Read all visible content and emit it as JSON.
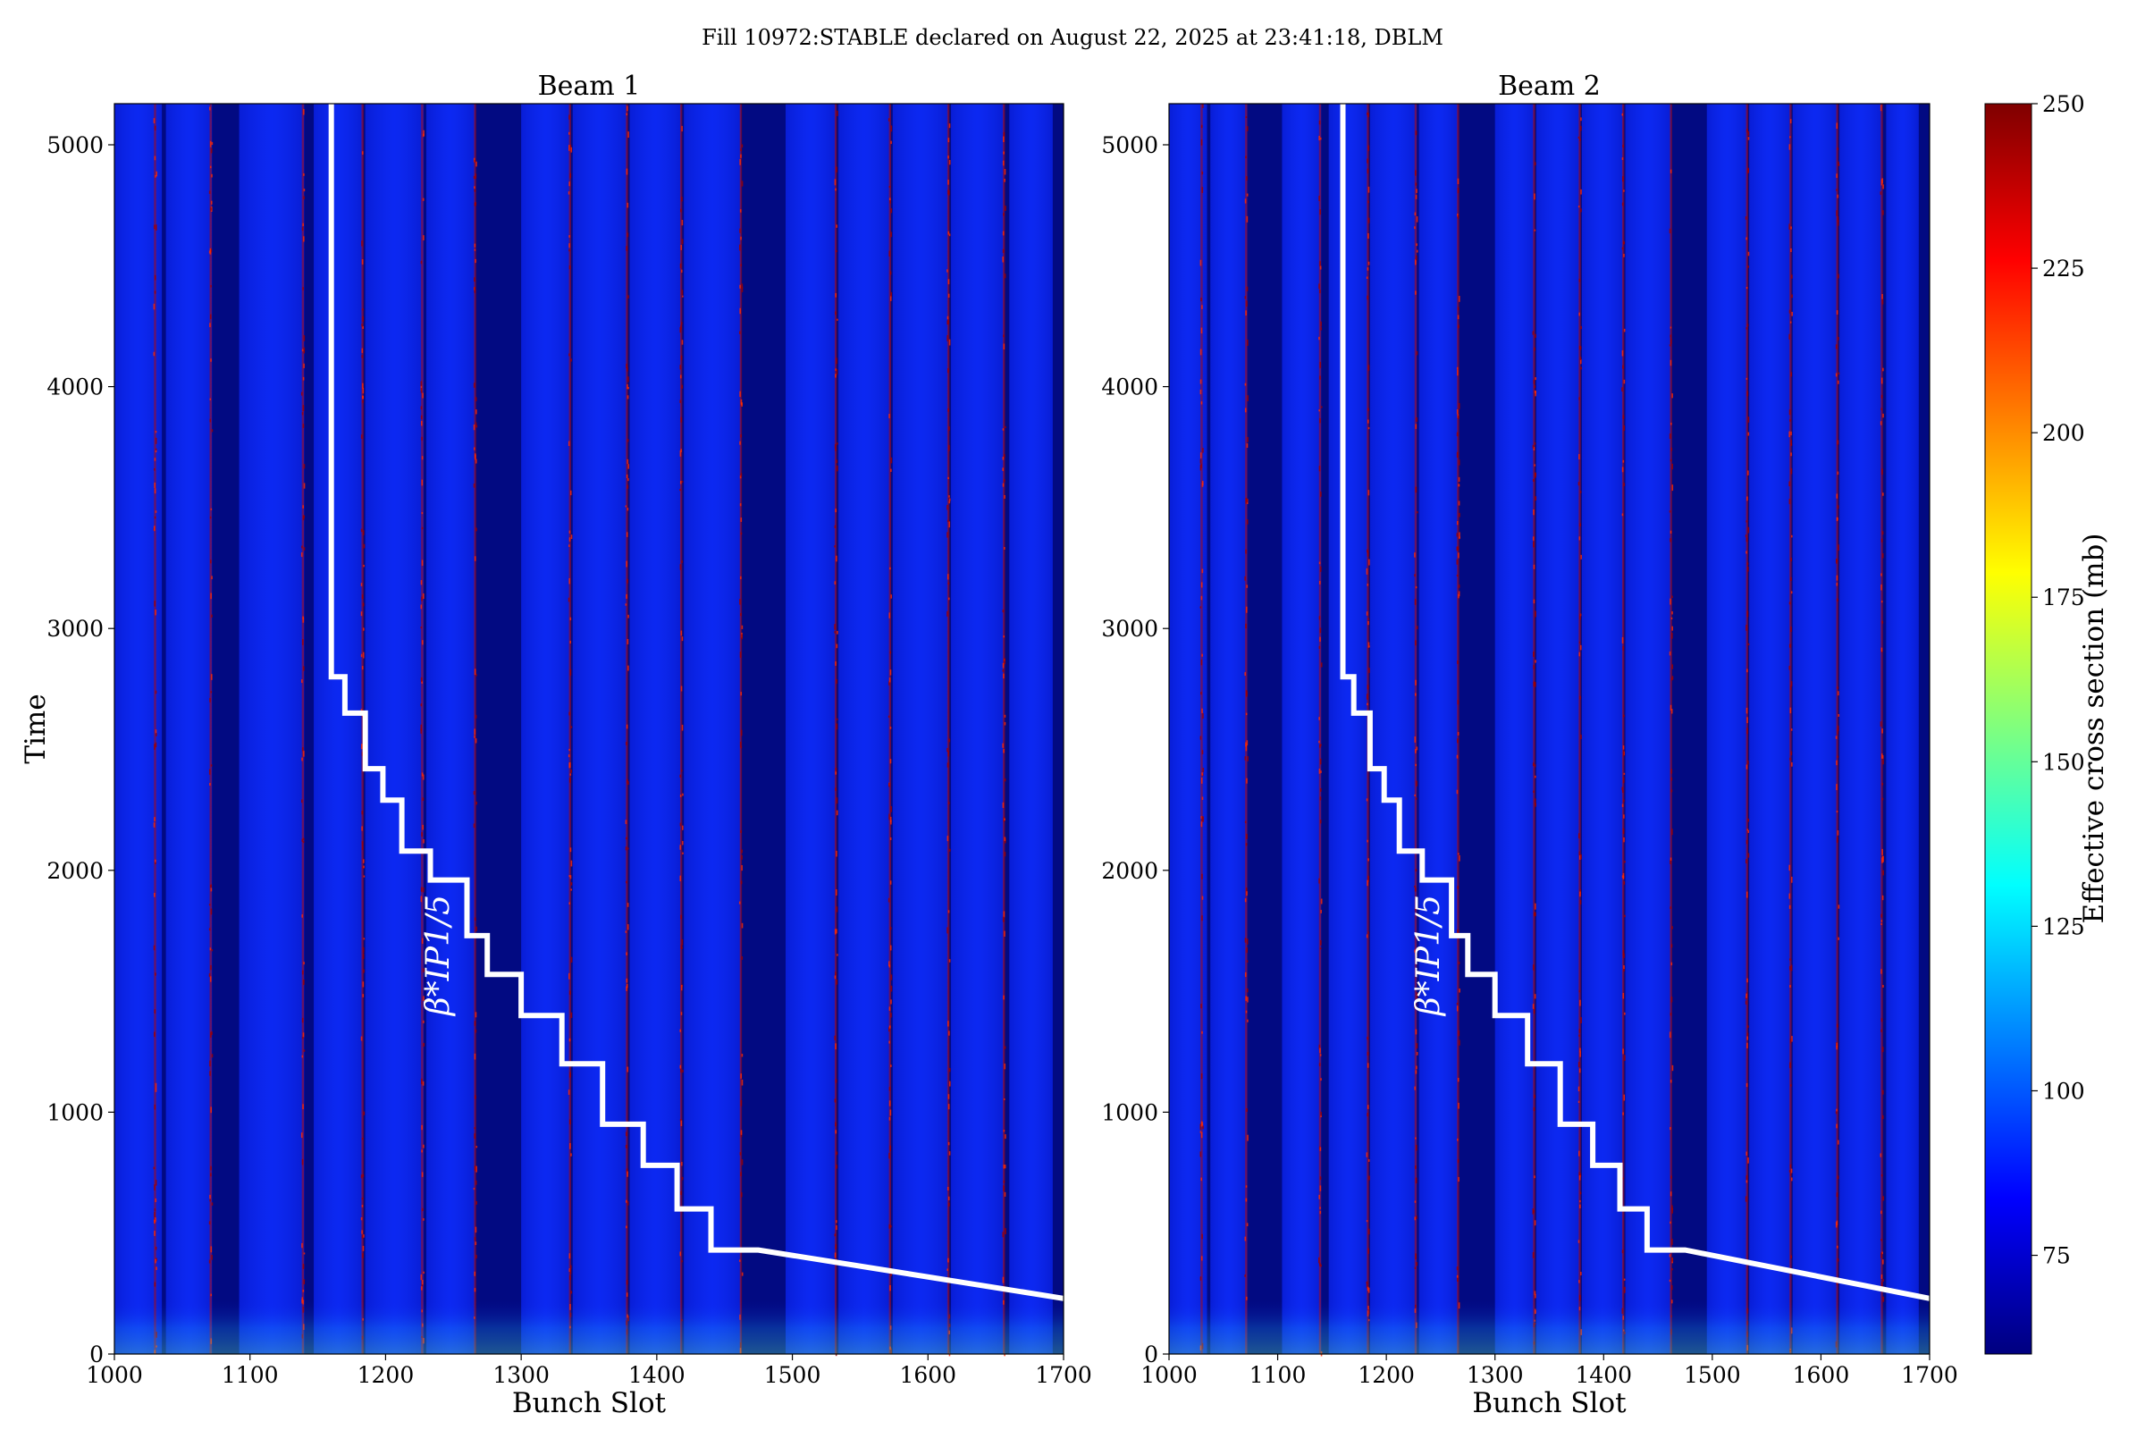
{
  "figure": {
    "suptitle": "Fill 10972:STABLE declared on August 22, 2025 at 23:41:18, DBLM"
  },
  "colorbar": {
    "label": "Effective cross section (mb)",
    "min": 60,
    "max": 250,
    "ticks": [
      "75",
      "100",
      "125",
      "150",
      "175",
      "200",
      "225",
      "250"
    ],
    "colormap": [
      "#00007f",
      "#0000ff",
      "#00ffff",
      "#7fff7f",
      "#ffff00",
      "#ff7f00",
      "#ff0000",
      "#7f0000"
    ]
  },
  "colors": {
    "background_blue": "#0a24f0",
    "gap_navy": "#020a82",
    "overlay_line": "#ffffff",
    "hot_edge": "#b40a0a"
  },
  "chart_data": [
    {
      "type": "heatmap",
      "title": "Beam 1",
      "xlabel": "Bunch Slot",
      "ylabel": "Time",
      "xlim": [
        1000,
        1700
      ],
      "ylim": [
        0,
        5170
      ],
      "xticks": [
        "1000",
        "1100",
        "1200",
        "1300",
        "1400",
        "1500",
        "1600",
        "1700"
      ],
      "yticks": [
        "0",
        "1000",
        "2000",
        "3000",
        "4000",
        "5000"
      ],
      "empty_slot_ranges": [
        [
          1035,
          1038
        ],
        [
          1072,
          1092
        ],
        [
          1140,
          1147
        ],
        [
          1183,
          1185
        ],
        [
          1228,
          1230
        ],
        [
          1266,
          1300
        ],
        [
          1336,
          1338
        ],
        [
          1378,
          1380
        ],
        [
          1418,
          1420
        ],
        [
          1462,
          1495
        ],
        [
          1532,
          1534
        ],
        [
          1572,
          1574
        ],
        [
          1615,
          1617
        ],
        [
          1656,
          1660
        ],
        [
          1692,
          1700
        ]
      ],
      "hot_edge_slots": [
        1030,
        1071,
        1139,
        1183,
        1227,
        1266,
        1336,
        1378,
        1418,
        1462,
        1532,
        1572,
        1615,
        1656
      ],
      "beta_star_label": "β*IP1/5",
      "beta_star_curve": {
        "x": [
          1160,
          1160,
          1170,
          1170,
          1185,
          1185,
          1198,
          1198,
          1212,
          1212,
          1233,
          1233,
          1260,
          1260,
          1275,
          1275,
          1300,
          1300,
          1330,
          1330,
          1360,
          1360,
          1390,
          1390,
          1415,
          1415,
          1440,
          1440,
          1475,
          1700
        ],
        "y": [
          5170,
          2800,
          2800,
          2650,
          2650,
          2420,
          2420,
          2290,
          2290,
          2080,
          2080,
          1960,
          1960,
          1730,
          1730,
          1570,
          1570,
          1400,
          1400,
          1200,
          1200,
          950,
          950,
          780,
          780,
          600,
          600,
          430,
          430,
          230
        ]
      }
    },
    {
      "type": "heatmap",
      "title": "Beam 2",
      "xlabel": "Bunch Slot",
      "ylabel": "",
      "xlim": [
        1000,
        1700
      ],
      "ylim": [
        0,
        5170
      ],
      "xticks": [
        "1000",
        "1100",
        "1200",
        "1300",
        "1400",
        "1500",
        "1600",
        "1700"
      ],
      "yticks": [
        "0",
        "1000",
        "2000",
        "3000",
        "4000",
        "5000"
      ],
      "empty_slot_ranges": [
        [
          1035,
          1038
        ],
        [
          1072,
          1104
        ],
        [
          1140,
          1147
        ],
        [
          1183,
          1185
        ],
        [
          1228,
          1230
        ],
        [
          1266,
          1300
        ],
        [
          1336,
          1338
        ],
        [
          1378,
          1380
        ],
        [
          1418,
          1420
        ],
        [
          1462,
          1495
        ],
        [
          1532,
          1534
        ],
        [
          1572,
          1574
        ],
        [
          1615,
          1617
        ],
        [
          1656,
          1660
        ],
        [
          1690,
          1700
        ]
      ],
      "hot_edge_slots": [
        1030,
        1071,
        1139,
        1183,
        1227,
        1266,
        1336,
        1378,
        1418,
        1462,
        1532,
        1572,
        1615,
        1656
      ],
      "beta_star_label": "β*IP1/5",
      "beta_star_curve": {
        "x": [
          1160,
          1160,
          1170,
          1170,
          1185,
          1185,
          1198,
          1198,
          1212,
          1212,
          1233,
          1233,
          1260,
          1260,
          1275,
          1275,
          1300,
          1300,
          1330,
          1330,
          1360,
          1360,
          1390,
          1390,
          1415,
          1415,
          1440,
          1440,
          1475,
          1700
        ],
        "y": [
          5170,
          2800,
          2800,
          2650,
          2650,
          2420,
          2420,
          2290,
          2290,
          2080,
          2080,
          1960,
          1960,
          1730,
          1730,
          1570,
          1570,
          1400,
          1400,
          1200,
          1200,
          950,
          950,
          780,
          780,
          600,
          600,
          430,
          430,
          230
        ]
      }
    }
  ]
}
